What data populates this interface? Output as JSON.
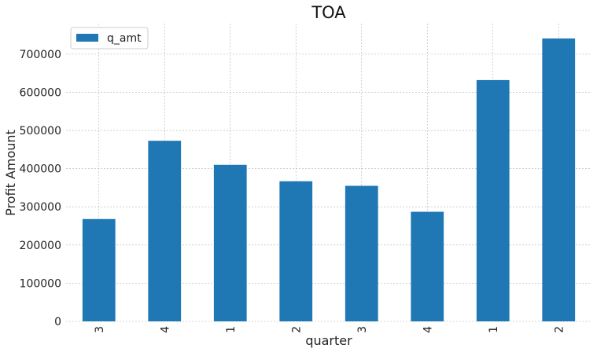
{
  "chart_data": {
    "type": "bar",
    "title": "TOA",
    "xlabel": "quarter",
    "ylabel": "Profit Amount",
    "categories": [
      "3",
      "4",
      "1",
      "2",
      "3",
      "4",
      "1",
      "2"
    ],
    "series": [
      {
        "name": "q_amt",
        "values": [
          268000,
          473000,
          410000,
          367000,
          355000,
          287000,
          632000,
          741000
        ]
      }
    ],
    "ylim": [
      0,
      780000
    ],
    "yticks": [
      0,
      100000,
      200000,
      300000,
      400000,
      500000,
      600000,
      700000
    ],
    "ytick_labels": [
      "0",
      "100000",
      "200000",
      "300000",
      "400000",
      "500000",
      "600000",
      "700000"
    ],
    "grid": true,
    "legend_position": "top-left",
    "bar_color": "#1f77b4"
  }
}
